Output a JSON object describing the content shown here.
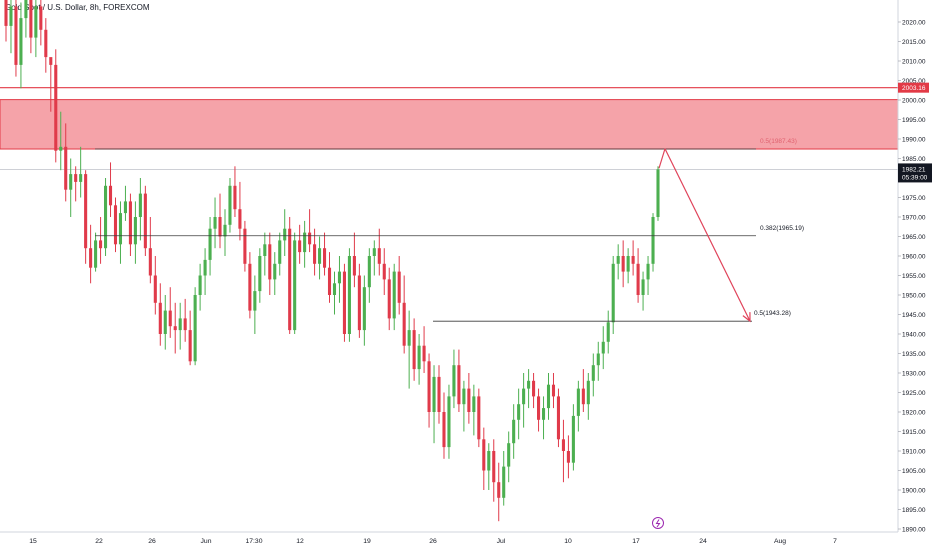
{
  "header": {
    "title": "Gold Spot / U.S. Dollar, 8h, FOREXCOM"
  },
  "colors": {
    "up": "#4caf50",
    "down": "#e03a4a",
    "zone_fill": "#f5a3a9",
    "zone_border": "#e23a46",
    "resistance_line": "#e23a46",
    "arrow": "#e0435a",
    "fib_line": "#3a3a3a",
    "price_badge": "#131722",
    "level_badge": "#e23a46"
  },
  "chart_data": {
    "type": "candlestick",
    "symbol": "Gold Spot / U.S. Dollar",
    "timeframe": "8h",
    "exchange": "FOREXCOM",
    "y_ticks": [
      2020,
      2015,
      2010,
      2005,
      2000,
      1995,
      1990,
      1985,
      1980,
      1975,
      1970,
      1965,
      1960,
      1955,
      1950,
      1945,
      1940,
      1935,
      1930,
      1925,
      1920,
      1915,
      1910,
      1905,
      1900,
      1895,
      1890
    ],
    "y_tick_labels": [
      "2020.00",
      "2015.00",
      "2010.00",
      "2005.00",
      "2000.00",
      "1995.00",
      "1990.00",
      "1985.00",
      "1980.00",
      "1975.00",
      "1970.00",
      "1965.00",
      "1960.00",
      "1955.00",
      "1950.00",
      "1945.00",
      "1940.00",
      "1935.00",
      "1930.00",
      "1925.00",
      "1920.00",
      "1915.00",
      "1910.00",
      "1905.00",
      "1900.00",
      "1895.00",
      "1890.00"
    ],
    "ylim": [
      1887,
      2025
    ],
    "x_labels": [
      "15",
      "22",
      "26",
      "Jun",
      "17:30",
      "12",
      "19",
      "26",
      "Jul",
      "10",
      "17",
      "24",
      "Aug",
      "7"
    ],
    "current_price": {
      "value": "1982.21",
      "countdown": "05:39:00"
    },
    "resistance_level": {
      "value": 2003.16,
      "label": "2003.16"
    },
    "supply_zone": {
      "top": 2000.1,
      "bottom": 1987.43
    },
    "fib_levels": [
      {
        "label": "0.5(1987.43)",
        "value": 1987.43
      },
      {
        "label": "0.382(1965.19)",
        "value": 1965.19
      },
      {
        "label": "0.5(1943.28)",
        "value": 1943.28
      }
    ],
    "projection": {
      "from": 1987.5,
      "to": 1943.3,
      "description": "projected drop toward 1943.28"
    },
    "candles": [
      [
        2027,
        2033,
        2015,
        2019
      ],
      [
        2019,
        2030,
        2012,
        2024
      ],
      [
        2024,
        2028,
        2006,
        2009
      ],
      [
        2009,
        2025,
        2003,
        2021
      ],
      [
        2021,
        2031,
        2016,
        2028
      ],
      [
        2028,
        2032,
        2012,
        2016
      ],
      [
        2016,
        2027,
        2011,
        2024
      ],
      [
        2024,
        2030,
        2014,
        2018
      ],
      [
        2018,
        2021,
        2007,
        2011
      ],
      [
        2011,
        2010,
        1997,
        2009
      ],
      [
        2009,
        2013,
        1984,
        1987
      ],
      [
        1987,
        1997,
        1982,
        1988
      ],
      [
        1988,
        1994,
        1974,
        1977
      ],
      [
        1977,
        1985,
        1970,
        1981
      ],
      [
        1981,
        1983,
        1974,
        1979
      ],
      [
        1979,
        1988,
        1975,
        1981
      ],
      [
        1981,
        1982,
        1958,
        1962
      ],
      [
        1962,
        1968,
        1953,
        1957
      ],
      [
        1957,
        1966,
        1956,
        1964
      ],
      [
        1964,
        1970,
        1958,
        1962
      ],
      [
        1962,
        1980,
        1960,
        1978
      ],
      [
        1978,
        1984,
        1970,
        1973
      ],
      [
        1973,
        1975,
        1961,
        1963
      ],
      [
        1963,
        1974,
        1958,
        1971
      ],
      [
        1971,
        1978,
        1969,
        1974
      ],
      [
        1974,
        1976,
        1960,
        1963
      ],
      [
        1963,
        1974,
        1958,
        1970
      ],
      [
        1970,
        1980,
        1964,
        1976
      ],
      [
        1976,
        1978,
        1960,
        1962
      ],
      [
        1962,
        1970,
        1953,
        1955
      ],
      [
        1955,
        1960,
        1945,
        1948
      ],
      [
        1948,
        1953,
        1937,
        1940
      ],
      [
        1940,
        1950,
        1936,
        1946
      ],
      [
        1946,
        1952,
        1939,
        1942
      ],
      [
        1942,
        1948,
        1935,
        1941
      ],
      [
        1941,
        1948,
        1936,
        1944
      ],
      [
        1944,
        1949,
        1938,
        1941
      ],
      [
        1941,
        1946,
        1932,
        1933
      ],
      [
        1933,
        1952,
        1932,
        1950
      ],
      [
        1950,
        1958,
        1946,
        1955
      ],
      [
        1955,
        1962,
        1950,
        1959
      ],
      [
        1959,
        1970,
        1955,
        1967
      ],
      [
        1967,
        1975,
        1962,
        1970
      ],
      [
        1970,
        1976,
        1962,
        1965
      ],
      [
        1965,
        1972,
        1960,
        1968
      ],
      [
        1968,
        1980,
        1966,
        1978
      ],
      [
        1978,
        1983,
        1970,
        1972
      ],
      [
        1972,
        1979,
        1964,
        1967
      ],
      [
        1967,
        1969,
        1956,
        1958
      ],
      [
        1958,
        1961,
        1944,
        1946
      ],
      [
        1946,
        1955,
        1940,
        1951
      ],
      [
        1951,
        1962,
        1948,
        1960
      ],
      [
        1960,
        1966,
        1955,
        1963
      ],
      [
        1963,
        1966,
        1950,
        1954
      ],
      [
        1954,
        1961,
        1950,
        1958
      ],
      [
        1958,
        1966,
        1955,
        1964
      ],
      [
        1964,
        1972,
        1960,
        1967
      ],
      [
        1967,
        1970,
        1940,
        1941
      ],
      [
        1941,
        1966,
        1940,
        1964
      ],
      [
        1964,
        1968,
        1958,
        1961
      ],
      [
        1961,
        1969,
        1957,
        1966
      ],
      [
        1966,
        1972,
        1961,
        1963
      ],
      [
        1963,
        1967,
        1955,
        1958
      ],
      [
        1958,
        1965,
        1954,
        1962
      ],
      [
        1962,
        1966,
        1955,
        1957
      ],
      [
        1957,
        1961,
        1948,
        1950
      ],
      [
        1950,
        1956,
        1945,
        1953
      ],
      [
        1953,
        1960,
        1948,
        1956
      ],
      [
        1956,
        1958,
        1938,
        1940
      ],
      [
        1940,
        1962,
        1938,
        1960
      ],
      [
        1960,
        1966,
        1952,
        1955
      ],
      [
        1955,
        1958,
        1939,
        1941
      ],
      [
        1941,
        1955,
        1937,
        1952
      ],
      [
        1952,
        1962,
        1948,
        1960
      ],
      [
        1960,
        1964,
        1955,
        1962
      ],
      [
        1962,
        1967,
        1955,
        1958
      ],
      [
        1958,
        1962,
        1950,
        1954
      ],
      [
        1954,
        1957,
        1941,
        1944
      ],
      [
        1944,
        1958,
        1941,
        1956
      ],
      [
        1956,
        1960,
        1945,
        1948
      ],
      [
        1948,
        1955,
        1935,
        1937
      ],
      [
        1937,
        1946,
        1926,
        1941
      ],
      [
        1941,
        1944,
        1928,
        1931
      ],
      [
        1931,
        1940,
        1927,
        1937
      ],
      [
        1937,
        1942,
        1930,
        1933
      ],
      [
        1933,
        1935,
        1916,
        1920
      ],
      [
        1920,
        1932,
        1912,
        1929
      ],
      [
        1929,
        1932,
        1917,
        1920
      ],
      [
        1920,
        1925,
        1908,
        1911
      ],
      [
        1911,
        1927,
        1908,
        1924
      ],
      [
        1924,
        1936,
        1921,
        1932
      ],
      [
        1932,
        1936,
        1920,
        1922
      ],
      [
        1922,
        1928,
        1915,
        1926
      ],
      [
        1926,
        1930,
        1917,
        1920
      ],
      [
        1920,
        1927,
        1914,
        1924
      ],
      [
        1924,
        1926,
        1911,
        1913
      ],
      [
        1913,
        1916,
        1900,
        1905
      ],
      [
        1905,
        1912,
        1900,
        1910
      ],
      [
        1910,
        1913,
        1897,
        1902
      ],
      [
        1902,
        1907,
        1892,
        1898
      ],
      [
        1898,
        1910,
        1896,
        1906
      ],
      [
        1906,
        1915,
        1902,
        1912
      ],
      [
        1912,
        1922,
        1908,
        1918
      ],
      [
        1918,
        1926,
        1913,
        1922
      ],
      [
        1922,
        1930,
        1916,
        1926
      ],
      [
        1926,
        1931,
        1921,
        1928
      ],
      [
        1928,
        1930,
        1921,
        1924
      ],
      [
        1924,
        1926,
        1915,
        1918
      ],
      [
        1918,
        1924,
        1913,
        1921
      ],
      [
        1921,
        1930,
        1918,
        1927
      ],
      [
        1927,
        1930,
        1921,
        1924
      ],
      [
        1924,
        1926,
        1911,
        1913
      ],
      [
        1913,
        1918,
        1902,
        1910
      ],
      [
        1910,
        1914,
        1903,
        1907
      ],
      [
        1907,
        1922,
        1905,
        1919
      ],
      [
        1919,
        1928,
        1915,
        1926
      ],
      [
        1926,
        1931,
        1920,
        1922
      ],
      [
        1922,
        1930,
        1918,
        1928
      ],
      [
        1928,
        1935,
        1924,
        1932
      ],
      [
        1932,
        1938,
        1928,
        1935
      ],
      [
        1935,
        1942,
        1931,
        1938
      ],
      [
        1938,
        1946,
        1935,
        1943
      ],
      [
        1943,
        1960,
        1940,
        1958
      ],
      [
        1958,
        1963,
        1954,
        1960
      ],
      [
        1960,
        1964,
        1952,
        1956
      ],
      [
        1956,
        1962,
        1953,
        1960
      ],
      [
        1960,
        1964,
        1955,
        1958
      ],
      [
        1958,
        1962,
        1948,
        1950
      ],
      [
        1950,
        1956,
        1946,
        1954
      ],
      [
        1954,
        1960,
        1950,
        1958
      ],
      [
        1958,
        1971,
        1956,
        1970
      ],
      [
        1970,
        1983,
        1969,
        1982.2
      ]
    ]
  }
}
